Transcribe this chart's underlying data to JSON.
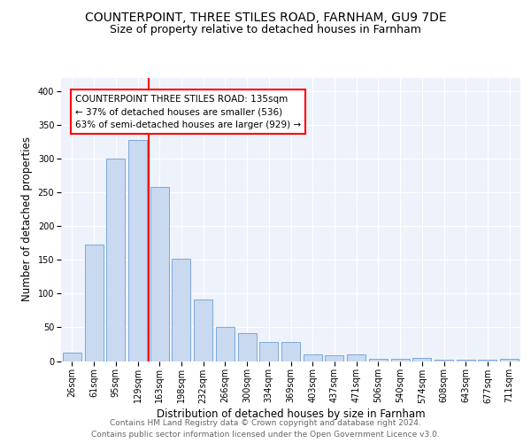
{
  "title1": "COUNTERPOINT, THREE STILES ROAD, FARNHAM, GU9 7DE",
  "title2": "Size of property relative to detached houses in Farnham",
  "xlabel": "Distribution of detached houses by size in Farnham",
  "ylabel": "Number of detached properties",
  "categories": [
    "26sqm",
    "61sqm",
    "95sqm",
    "129sqm",
    "163sqm",
    "198sqm",
    "232sqm",
    "266sqm",
    "300sqm",
    "334sqm",
    "369sqm",
    "403sqm",
    "437sqm",
    "471sqm",
    "506sqm",
    "540sqm",
    "574sqm",
    "608sqm",
    "643sqm",
    "677sqm",
    "711sqm"
  ],
  "values": [
    13,
    172,
    300,
    328,
    258,
    152,
    91,
    50,
    42,
    28,
    28,
    10,
    9,
    10,
    3,
    3,
    5,
    2,
    2,
    2,
    3
  ],
  "bar_color": "#c9d9f0",
  "bar_edge_color": "#6b9fd4",
  "red_line_x": 3.5,
  "annotation_text": "COUNTERPOINT THREE STILES ROAD: 135sqm\n← 37% of detached houses are smaller (536)\n63% of semi-detached houses are larger (929) →",
  "footer": "Contains HM Land Registry data © Crown copyright and database right 2024.\nContains public sector information licensed under the Open Government Licence v3.0.",
  "ylim": [
    0,
    420
  ],
  "yticks": [
    0,
    50,
    100,
    150,
    200,
    250,
    300,
    350,
    400
  ],
  "plot_bg_color": "#eef2fa",
  "title1_fontsize": 10,
  "title2_fontsize": 9,
  "xlabel_fontsize": 8.5,
  "ylabel_fontsize": 8.5,
  "tick_fontsize": 7,
  "footer_fontsize": 6.5,
  "ann_fontsize": 7.5
}
